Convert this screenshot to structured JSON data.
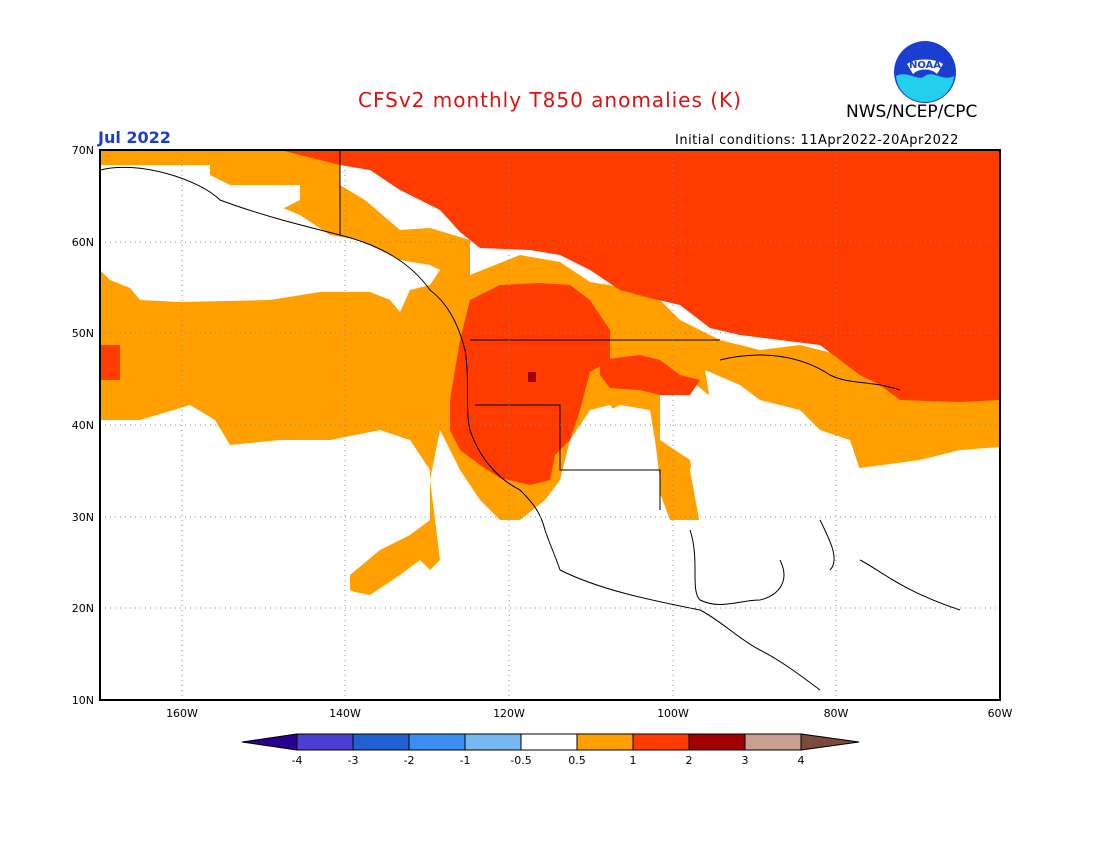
{
  "title": "CFSv2 monthly T850 anomalies (K)",
  "agency": "NWS/NCEP/CPC",
  "logo_text": "NOAA",
  "period": "Jul 2022",
  "initial_conditions": "Initial conditions: 11Apr2022-20Apr2022",
  "lat_labels": [
    "70N",
    "60N",
    "50N",
    "40N",
    "30N",
    "20N",
    "10N"
  ],
  "lon_labels": [
    "160W",
    "140W",
    "120W",
    "100W",
    "80W",
    "60W"
  ],
  "colorbar": {
    "labels": [
      "-4",
      "-3",
      "-2",
      "-1",
      "-0.5",
      "0.5",
      "1",
      "2",
      "3",
      "4"
    ],
    "colors": [
      "#2a0090",
      "#4a3fd0",
      "#2060d0",
      "#3a8ff0",
      "#78b8f0",
      "#ffffff",
      "#ff9f00",
      "#ff3b00",
      "#a00000",
      "#c8a090",
      "#7a4a3a"
    ]
  }
}
